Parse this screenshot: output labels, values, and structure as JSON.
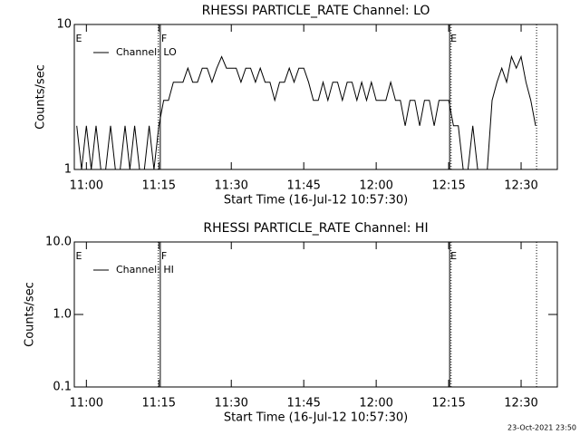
{
  "chart_data": [
    {
      "type": "line",
      "title": "RHESSI PARTICLE_RATE Channel: LO",
      "xlabel": "Start Time (16-Jul-12 10:57:30)",
      "ylabel": "Counts/sec",
      "log_y": true,
      "xlim": [
        657.5,
        757.5
      ],
      "xticks": [
        {
          "value": 660,
          "label": "11:00"
        },
        {
          "value": 675,
          "label": "11:15"
        },
        {
          "value": 690,
          "label": "11:30"
        },
        {
          "value": 705,
          "label": "11:45"
        },
        {
          "value": 720,
          "label": "12:00"
        },
        {
          "value": 735,
          "label": "12:15"
        },
        {
          "value": 750,
          "label": "12:30"
        }
      ],
      "ylim": [
        1,
        10
      ],
      "yticks": [
        1,
        10
      ],
      "annotations": [
        {
          "x": 657.6,
          "label": "E"
        },
        {
          "x": 675.3,
          "label": "F"
        },
        {
          "x": 735.2,
          "label": "E"
        }
      ],
      "dotted_lines": [
        674.9,
        735.5,
        753.2
      ],
      "series": [
        {
          "name": "Channel: LO",
          "color": "#000000",
          "x": [
            658,
            659,
            660,
            661,
            662,
            663,
            664,
            665,
            666,
            667,
            668,
            669,
            670,
            671,
            672,
            673,
            674,
            675,
            676,
            677,
            678,
            679,
            680,
            681,
            682,
            683,
            684,
            685,
            686,
            687,
            688,
            689,
            690,
            691,
            692,
            693,
            694,
            695,
            696,
            697,
            698,
            699,
            700,
            701,
            702,
            703,
            704,
            705,
            706,
            707,
            708,
            709,
            710,
            711,
            712,
            713,
            714,
            715,
            716,
            717,
            718,
            719,
            720,
            721,
            722,
            723,
            724,
            725,
            726,
            727,
            728,
            729,
            730,
            731,
            732,
            733,
            734,
            735,
            736,
            737,
            738,
            739,
            740,
            741,
            742,
            743,
            744,
            745,
            746,
            747,
            748,
            749,
            750,
            751,
            752,
            753
          ],
          "values": [
            2,
            1,
            2,
            1,
            2,
            1,
            1,
            2,
            1,
            1,
            2,
            1,
            2,
            1,
            1,
            2,
            1,
            2,
            3,
            3,
            4,
            4,
            4,
            5,
            4,
            4,
            5,
            5,
            4,
            5,
            6,
            5,
            5,
            5,
            4,
            5,
            5,
            4,
            5,
            4,
            4,
            3,
            4,
            4,
            5,
            4,
            5,
            5,
            4,
            3,
            3,
            4,
            3,
            4,
            4,
            3,
            4,
            4,
            3,
            4,
            3,
            4,
            3,
            3,
            3,
            4,
            3,
            3,
            2,
            3,
            3,
            2,
            3,
            3,
            2,
            3,
            3,
            3,
            2,
            2,
            1,
            1,
            2,
            1,
            1,
            1,
            3,
            4,
            5,
            4,
            6,
            5,
            6,
            4,
            3,
            2
          ]
        }
      ]
    },
    {
      "type": "line",
      "title": "RHESSI PARTICLE_RATE Channel: HI",
      "xlabel": "Start Time (16-Jul-12 10:57:30)",
      "ylabel": "Counts/sec",
      "log_y": true,
      "xlim": [
        657.5,
        757.5
      ],
      "xticks": [
        {
          "value": 660,
          "label": "11:00"
        },
        {
          "value": 675,
          "label": "11:15"
        },
        {
          "value": 690,
          "label": "11:30"
        },
        {
          "value": 705,
          "label": "11:45"
        },
        {
          "value": 720,
          "label": "12:00"
        },
        {
          "value": 735,
          "label": "12:15"
        },
        {
          "value": 750,
          "label": "12:30"
        }
      ],
      "ylim": [
        0.1,
        10
      ],
      "yticks": [
        0.1,
        {
          "value": 1,
          "label": "1.0"
        },
        {
          "value": 10,
          "label": "10.0"
        }
      ],
      "annotations": [
        {
          "x": 657.6,
          "label": "E"
        },
        {
          "x": 675.3,
          "label": "F"
        },
        {
          "x": 735.2,
          "label": "E"
        }
      ],
      "dotted_lines": [
        674.9,
        735.5,
        753.2
      ],
      "series": [
        {
          "name": "Channel: HI",
          "color": "#000000",
          "x": [],
          "values": []
        }
      ]
    }
  ],
  "footer": "23-Oct-2021 23:50"
}
